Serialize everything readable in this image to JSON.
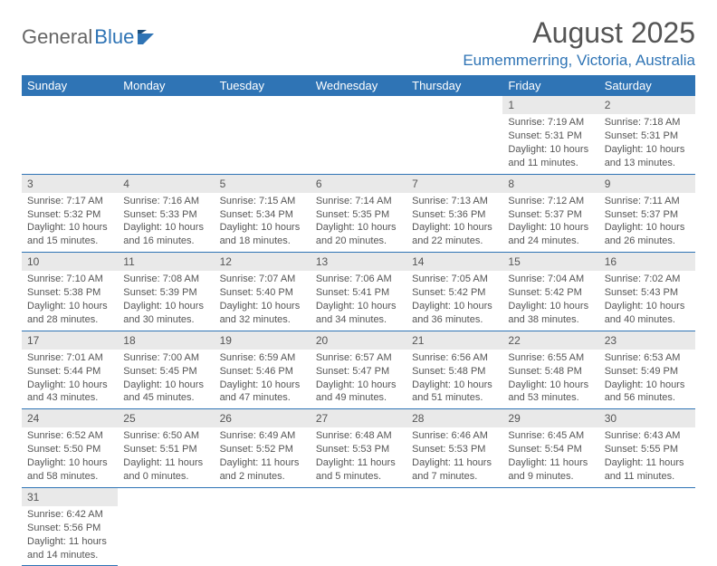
{
  "logo": {
    "part1": "General",
    "part2": "Blue"
  },
  "title": "August 2025",
  "location": "Eumemmerring, Victoria, Australia",
  "colors": {
    "header_bg": "#2f74b5",
    "header_text": "#ffffff",
    "daynum_bg": "#e9e9e9",
    "border": "#2f74b5",
    "text": "#555555",
    "location_color": "#2f74b5"
  },
  "weekdays": [
    "Sunday",
    "Monday",
    "Tuesday",
    "Wednesday",
    "Thursday",
    "Friday",
    "Saturday"
  ],
  "weeks": [
    [
      null,
      null,
      null,
      null,
      null,
      {
        "n": "1",
        "sr": "Sunrise: 7:19 AM",
        "ss": "Sunset: 5:31 PM",
        "d1": "Daylight: 10 hours",
        "d2": "and 11 minutes."
      },
      {
        "n": "2",
        "sr": "Sunrise: 7:18 AM",
        "ss": "Sunset: 5:31 PM",
        "d1": "Daylight: 10 hours",
        "d2": "and 13 minutes."
      }
    ],
    [
      {
        "n": "3",
        "sr": "Sunrise: 7:17 AM",
        "ss": "Sunset: 5:32 PM",
        "d1": "Daylight: 10 hours",
        "d2": "and 15 minutes."
      },
      {
        "n": "4",
        "sr": "Sunrise: 7:16 AM",
        "ss": "Sunset: 5:33 PM",
        "d1": "Daylight: 10 hours",
        "d2": "and 16 minutes."
      },
      {
        "n": "5",
        "sr": "Sunrise: 7:15 AM",
        "ss": "Sunset: 5:34 PM",
        "d1": "Daylight: 10 hours",
        "d2": "and 18 minutes."
      },
      {
        "n": "6",
        "sr": "Sunrise: 7:14 AM",
        "ss": "Sunset: 5:35 PM",
        "d1": "Daylight: 10 hours",
        "d2": "and 20 minutes."
      },
      {
        "n": "7",
        "sr": "Sunrise: 7:13 AM",
        "ss": "Sunset: 5:36 PM",
        "d1": "Daylight: 10 hours",
        "d2": "and 22 minutes."
      },
      {
        "n": "8",
        "sr": "Sunrise: 7:12 AM",
        "ss": "Sunset: 5:37 PM",
        "d1": "Daylight: 10 hours",
        "d2": "and 24 minutes."
      },
      {
        "n": "9",
        "sr": "Sunrise: 7:11 AM",
        "ss": "Sunset: 5:37 PM",
        "d1": "Daylight: 10 hours",
        "d2": "and 26 minutes."
      }
    ],
    [
      {
        "n": "10",
        "sr": "Sunrise: 7:10 AM",
        "ss": "Sunset: 5:38 PM",
        "d1": "Daylight: 10 hours",
        "d2": "and 28 minutes."
      },
      {
        "n": "11",
        "sr": "Sunrise: 7:08 AM",
        "ss": "Sunset: 5:39 PM",
        "d1": "Daylight: 10 hours",
        "d2": "and 30 minutes."
      },
      {
        "n": "12",
        "sr": "Sunrise: 7:07 AM",
        "ss": "Sunset: 5:40 PM",
        "d1": "Daylight: 10 hours",
        "d2": "and 32 minutes."
      },
      {
        "n": "13",
        "sr": "Sunrise: 7:06 AM",
        "ss": "Sunset: 5:41 PM",
        "d1": "Daylight: 10 hours",
        "d2": "and 34 minutes."
      },
      {
        "n": "14",
        "sr": "Sunrise: 7:05 AM",
        "ss": "Sunset: 5:42 PM",
        "d1": "Daylight: 10 hours",
        "d2": "and 36 minutes."
      },
      {
        "n": "15",
        "sr": "Sunrise: 7:04 AM",
        "ss": "Sunset: 5:42 PM",
        "d1": "Daylight: 10 hours",
        "d2": "and 38 minutes."
      },
      {
        "n": "16",
        "sr": "Sunrise: 7:02 AM",
        "ss": "Sunset: 5:43 PM",
        "d1": "Daylight: 10 hours",
        "d2": "and 40 minutes."
      }
    ],
    [
      {
        "n": "17",
        "sr": "Sunrise: 7:01 AM",
        "ss": "Sunset: 5:44 PM",
        "d1": "Daylight: 10 hours",
        "d2": "and 43 minutes."
      },
      {
        "n": "18",
        "sr": "Sunrise: 7:00 AM",
        "ss": "Sunset: 5:45 PM",
        "d1": "Daylight: 10 hours",
        "d2": "and 45 minutes."
      },
      {
        "n": "19",
        "sr": "Sunrise: 6:59 AM",
        "ss": "Sunset: 5:46 PM",
        "d1": "Daylight: 10 hours",
        "d2": "and 47 minutes."
      },
      {
        "n": "20",
        "sr": "Sunrise: 6:57 AM",
        "ss": "Sunset: 5:47 PM",
        "d1": "Daylight: 10 hours",
        "d2": "and 49 minutes."
      },
      {
        "n": "21",
        "sr": "Sunrise: 6:56 AM",
        "ss": "Sunset: 5:48 PM",
        "d1": "Daylight: 10 hours",
        "d2": "and 51 minutes."
      },
      {
        "n": "22",
        "sr": "Sunrise: 6:55 AM",
        "ss": "Sunset: 5:48 PM",
        "d1": "Daylight: 10 hours",
        "d2": "and 53 minutes."
      },
      {
        "n": "23",
        "sr": "Sunrise: 6:53 AM",
        "ss": "Sunset: 5:49 PM",
        "d1": "Daylight: 10 hours",
        "d2": "and 56 minutes."
      }
    ],
    [
      {
        "n": "24",
        "sr": "Sunrise: 6:52 AM",
        "ss": "Sunset: 5:50 PM",
        "d1": "Daylight: 10 hours",
        "d2": "and 58 minutes."
      },
      {
        "n": "25",
        "sr": "Sunrise: 6:50 AM",
        "ss": "Sunset: 5:51 PM",
        "d1": "Daylight: 11 hours",
        "d2": "and 0 minutes."
      },
      {
        "n": "26",
        "sr": "Sunrise: 6:49 AM",
        "ss": "Sunset: 5:52 PM",
        "d1": "Daylight: 11 hours",
        "d2": "and 2 minutes."
      },
      {
        "n": "27",
        "sr": "Sunrise: 6:48 AM",
        "ss": "Sunset: 5:53 PM",
        "d1": "Daylight: 11 hours",
        "d2": "and 5 minutes."
      },
      {
        "n": "28",
        "sr": "Sunrise: 6:46 AM",
        "ss": "Sunset: 5:53 PM",
        "d1": "Daylight: 11 hours",
        "d2": "and 7 minutes."
      },
      {
        "n": "29",
        "sr": "Sunrise: 6:45 AM",
        "ss": "Sunset: 5:54 PM",
        "d1": "Daylight: 11 hours",
        "d2": "and 9 minutes."
      },
      {
        "n": "30",
        "sr": "Sunrise: 6:43 AM",
        "ss": "Sunset: 5:55 PM",
        "d1": "Daylight: 11 hours",
        "d2": "and 11 minutes."
      }
    ],
    [
      {
        "n": "31",
        "sr": "Sunrise: 6:42 AM",
        "ss": "Sunset: 5:56 PM",
        "d1": "Daylight: 11 hours",
        "d2": "and 14 minutes."
      },
      null,
      null,
      null,
      null,
      null,
      null
    ]
  ]
}
